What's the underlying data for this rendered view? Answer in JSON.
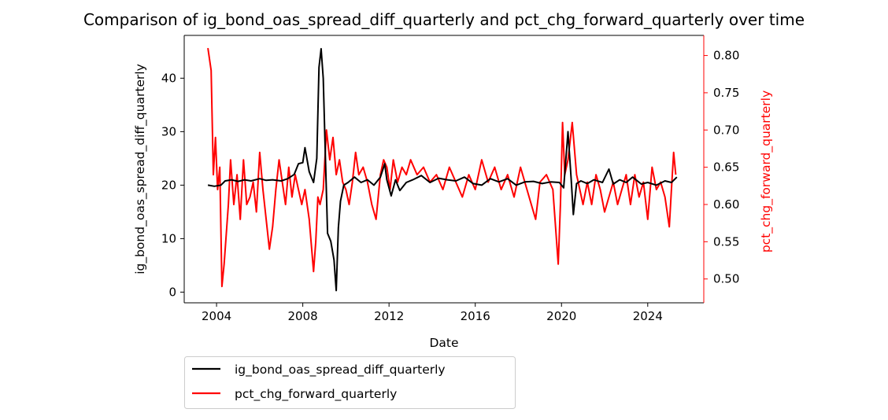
{
  "chart_data": {
    "type": "line",
    "title": "Comparison of ig_bond_oas_spread_diff_quarterly and pct_chg_forward_quarterly over time",
    "xlabel": "Date",
    "ylabel_left": "ig_bond_oas_spread_diff_quarterly",
    "ylabel_right": "pct_chg_forward_quarterly",
    "xlim": [
      2002.5,
      2026.6
    ],
    "ylim_left": [
      -2,
      48
    ],
    "ylim_right": [
      0.468,
      0.827
    ],
    "x_ticks": [
      2004,
      2008,
      2012,
      2016,
      2020,
      2024
    ],
    "y_ticks_left": [
      0,
      10,
      20,
      30,
      40
    ],
    "y_ticks_right": [
      0.5,
      0.55,
      0.6,
      0.65,
      0.7,
      0.75,
      0.8
    ],
    "y_tick_labels_right": [
      "0.50",
      "0.55",
      "0.60",
      "0.65",
      "0.70",
      "0.75",
      "0.80"
    ],
    "grid": false,
    "legend": {
      "placement": "below-left"
    },
    "series": [
      {
        "name": "ig_bond_oas_spread_diff_quarterly",
        "axis": "left",
        "color": "#000000",
        "x": [
          2003.6,
          2003.9,
          2004.2,
          2004.4,
          2004.7,
          2005.0,
          2005.3,
          2005.6,
          2006.0,
          2006.3,
          2006.6,
          2007.0,
          2007.3,
          2007.6,
          2007.8,
          2008.0,
          2008.1,
          2008.3,
          2008.5,
          2008.65,
          2008.75,
          2008.85,
          2008.95,
          2009.05,
          2009.15,
          2009.3,
          2009.45,
          2009.55,
          2009.65,
          2009.75,
          2009.9,
          2010.1,
          2010.4,
          2010.7,
          2011.0,
          2011.3,
          2011.6,
          2011.8,
          2011.9,
          2012.1,
          2012.3,
          2012.5,
          2012.8,
          2013.1,
          2013.5,
          2013.9,
          2014.3,
          2014.7,
          2015.1,
          2015.5,
          2015.9,
          2016.3,
          2016.7,
          2017.1,
          2017.5,
          2017.9,
          2018.3,
          2018.7,
          2019.1,
          2019.5,
          2019.9,
          2020.1,
          2020.3,
          2020.45,
          2020.55,
          2020.7,
          2020.9,
          2021.2,
          2021.5,
          2021.9,
          2022.2,
          2022.4,
          2022.7,
          2023.0,
          2023.3,
          2023.7,
          2024.0,
          2024.4,
          2024.8,
          2025.1,
          2025.35
        ],
        "y": [
          20.0,
          19.8,
          20.0,
          20.8,
          21.0,
          20.7,
          21.0,
          20.8,
          21.2,
          20.9,
          21.0,
          20.8,
          21.2,
          22.0,
          24.0,
          24.2,
          27.0,
          22.5,
          20.5,
          25.0,
          42.0,
          45.5,
          40.0,
          25.0,
          11.0,
          9.5,
          6.0,
          0.3,
          12.0,
          17.0,
          20.0,
          20.5,
          21.5,
          20.5,
          21.0,
          20.0,
          21.5,
          24.0,
          21.0,
          18.0,
          21.0,
          19.0,
          20.5,
          21.0,
          21.8,
          20.5,
          21.3,
          21.0,
          20.8,
          21.5,
          20.3,
          20.0,
          21.2,
          20.6,
          21.2,
          20.0,
          20.6,
          20.7,
          20.3,
          20.6,
          20.5,
          19.5,
          30.0,
          21.0,
          14.5,
          20.3,
          20.8,
          20.3,
          21.0,
          20.5,
          23.0,
          20.2,
          21.0,
          20.5,
          21.5,
          20.2,
          20.5,
          20.0,
          20.8,
          20.5,
          21.5
        ]
      },
      {
        "name": "pct_chg_forward_quarterly",
        "axis": "right",
        "color": "#ff0000",
        "x": [
          2003.6,
          2003.75,
          2003.85,
          2003.95,
          2004.05,
          2004.15,
          2004.25,
          2004.35,
          2004.45,
          2004.55,
          2004.65,
          2004.8,
          2004.95,
          2005.1,
          2005.25,
          2005.4,
          2005.55,
          2005.7,
          2005.85,
          2006.0,
          2006.15,
          2006.3,
          2006.45,
          2006.6,
          2006.75,
          2006.9,
          2007.05,
          2007.2,
          2007.35,
          2007.5,
          2007.65,
          2007.8,
          2007.95,
          2008.1,
          2008.3,
          2008.5,
          2008.6,
          2008.7,
          2008.8,
          2008.95,
          2009.1,
          2009.25,
          2009.4,
          2009.55,
          2009.7,
          2009.85,
          2010.0,
          2010.15,
          2010.3,
          2010.45,
          2010.6,
          2010.8,
          2011.0,
          2011.2,
          2011.4,
          2011.6,
          2011.75,
          2011.9,
          2012.05,
          2012.2,
          2012.4,
          2012.6,
          2012.8,
          2013.0,
          2013.3,
          2013.6,
          2013.9,
          2014.2,
          2014.5,
          2014.8,
          2015.1,
          2015.4,
          2015.7,
          2016.0,
          2016.3,
          2016.6,
          2016.9,
          2017.2,
          2017.5,
          2017.8,
          2018.1,
          2018.4,
          2018.6,
          2018.8,
          2019.0,
          2019.3,
          2019.6,
          2019.85,
          2019.95,
          2020.05,
          2020.15,
          2020.3,
          2020.5,
          2020.7,
          2020.85,
          2021.0,
          2021.2,
          2021.4,
          2021.6,
          2021.8,
          2022.0,
          2022.2,
          2022.4,
          2022.6,
          2022.8,
          2023.0,
          2023.2,
          2023.4,
          2023.6,
          2023.8,
          2024.0,
          2024.2,
          2024.4,
          2024.6,
          2024.8,
          2025.0,
          2025.1,
          2025.2,
          2025.3
        ],
        "y": [
          0.81,
          0.78,
          0.64,
          0.69,
          0.62,
          0.65,
          0.49,
          0.52,
          0.56,
          0.6,
          0.66,
          0.6,
          0.64,
          0.58,
          0.66,
          0.6,
          0.61,
          0.63,
          0.59,
          0.67,
          0.62,
          0.58,
          0.54,
          0.57,
          0.62,
          0.66,
          0.63,
          0.6,
          0.65,
          0.61,
          0.64,
          0.62,
          0.6,
          0.62,
          0.58,
          0.51,
          0.55,
          0.61,
          0.6,
          0.62,
          0.7,
          0.66,
          0.69,
          0.64,
          0.66,
          0.63,
          0.62,
          0.6,
          0.63,
          0.67,
          0.64,
          0.65,
          0.63,
          0.6,
          0.58,
          0.64,
          0.66,
          0.65,
          0.62,
          0.66,
          0.63,
          0.65,
          0.64,
          0.66,
          0.64,
          0.65,
          0.63,
          0.64,
          0.62,
          0.65,
          0.63,
          0.61,
          0.64,
          0.62,
          0.66,
          0.63,
          0.65,
          0.62,
          0.64,
          0.61,
          0.65,
          0.62,
          0.6,
          0.58,
          0.63,
          0.64,
          0.62,
          0.52,
          0.6,
          0.71,
          0.64,
          0.66,
          0.71,
          0.64,
          0.62,
          0.6,
          0.63,
          0.6,
          0.64,
          0.62,
          0.59,
          0.61,
          0.63,
          0.6,
          0.62,
          0.64,
          0.6,
          0.64,
          0.61,
          0.63,
          0.58,
          0.65,
          0.62,
          0.63,
          0.61,
          0.57,
          0.62,
          0.67,
          0.64
        ]
      }
    ]
  }
}
